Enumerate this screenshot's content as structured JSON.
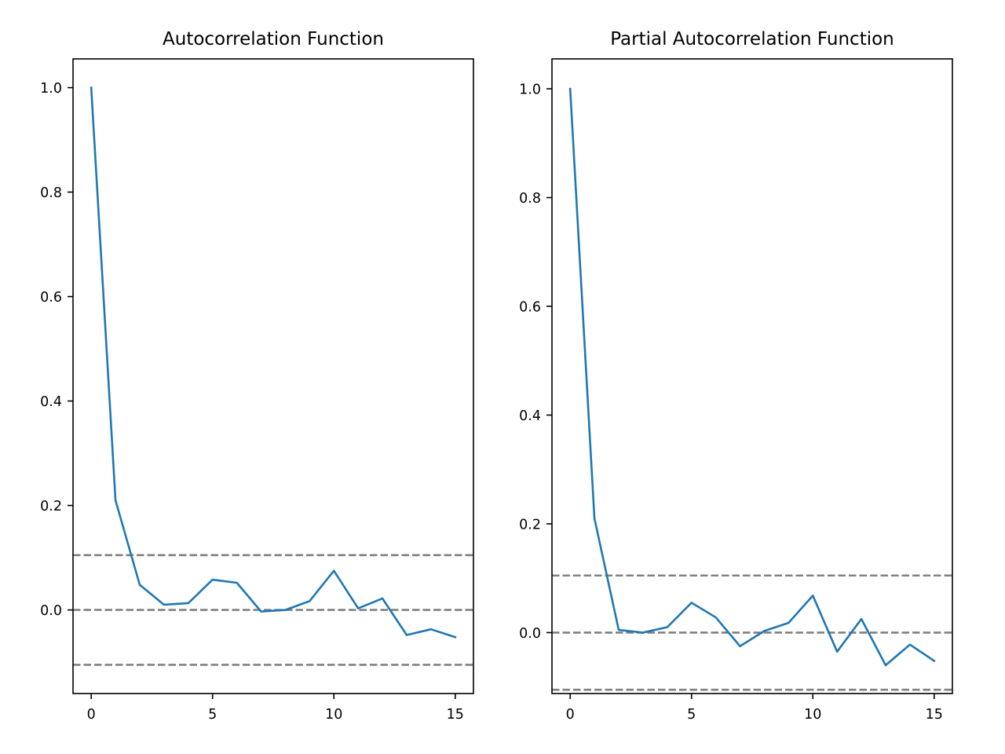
{
  "chart_data": [
    {
      "type": "line",
      "title": "Autocorrelation Function",
      "xlabel": "",
      "ylabel": "",
      "xlim": [
        -0.75,
        15.75
      ],
      "ylim": [
        -0.16,
        1.055
      ],
      "xticks": [
        0,
        5,
        10,
        15
      ],
      "xtick_labels": [
        "0",
        "5",
        "10",
        "15"
      ],
      "yticks": [
        0.0,
        0.2,
        0.4,
        0.6,
        0.8,
        1.0
      ],
      "ytick_labels": [
        "0.0",
        "0.2",
        "0.4",
        "0.6",
        "0.8",
        "1.0"
      ],
      "grid": false,
      "series": [
        {
          "color": "#1f77b4",
          "x": [
            0,
            1,
            2,
            3,
            4,
            5,
            6,
            7,
            8,
            9,
            10,
            11,
            12,
            13,
            14,
            15
          ],
          "values": [
            1.0,
            0.21,
            0.048,
            0.01,
            0.013,
            0.058,
            0.052,
            -0.003,
            0.0,
            0.017,
            0.075,
            0.003,
            0.022,
            -0.048,
            -0.037,
            -0.052
          ]
        }
      ],
      "reference_lines": [
        {
          "y": 0.105,
          "color": "#808080",
          "style": "dashed"
        },
        {
          "y": 0.0,
          "color": "#808080",
          "style": "dashed"
        },
        {
          "y": -0.105,
          "color": "#808080",
          "style": "dashed"
        }
      ]
    },
    {
      "type": "line",
      "title": "Partial Autocorrelation Function",
      "xlabel": "",
      "ylabel": "",
      "xlim": [
        -0.75,
        15.75
      ],
      "ylim": [
        -0.112,
        1.055
      ],
      "xticks": [
        0,
        5,
        10,
        15
      ],
      "xtick_labels": [
        "0",
        "5",
        "10",
        "15"
      ],
      "yticks": [
        0.0,
        0.2,
        0.4,
        0.6,
        0.8,
        1.0
      ],
      "ytick_labels": [
        "0.0",
        "0.2",
        "0.4",
        "0.6",
        "0.8",
        "1.0"
      ],
      "grid": false,
      "series": [
        {
          "color": "#1f77b4",
          "x": [
            0,
            1,
            2,
            3,
            4,
            5,
            6,
            7,
            8,
            9,
            10,
            11,
            12,
            13,
            14,
            15
          ],
          "values": [
            1.0,
            0.21,
            0.005,
            0.0,
            0.01,
            0.055,
            0.028,
            -0.025,
            0.003,
            0.018,
            0.068,
            -0.035,
            0.025,
            -0.06,
            -0.022,
            -0.052
          ]
        }
      ],
      "reference_lines": [
        {
          "y": 0.105,
          "color": "#808080",
          "style": "dashed"
        },
        {
          "y": 0.0,
          "color": "#808080",
          "style": "dashed"
        },
        {
          "y": -0.105,
          "color": "#808080",
          "style": "dashed"
        }
      ]
    }
  ]
}
